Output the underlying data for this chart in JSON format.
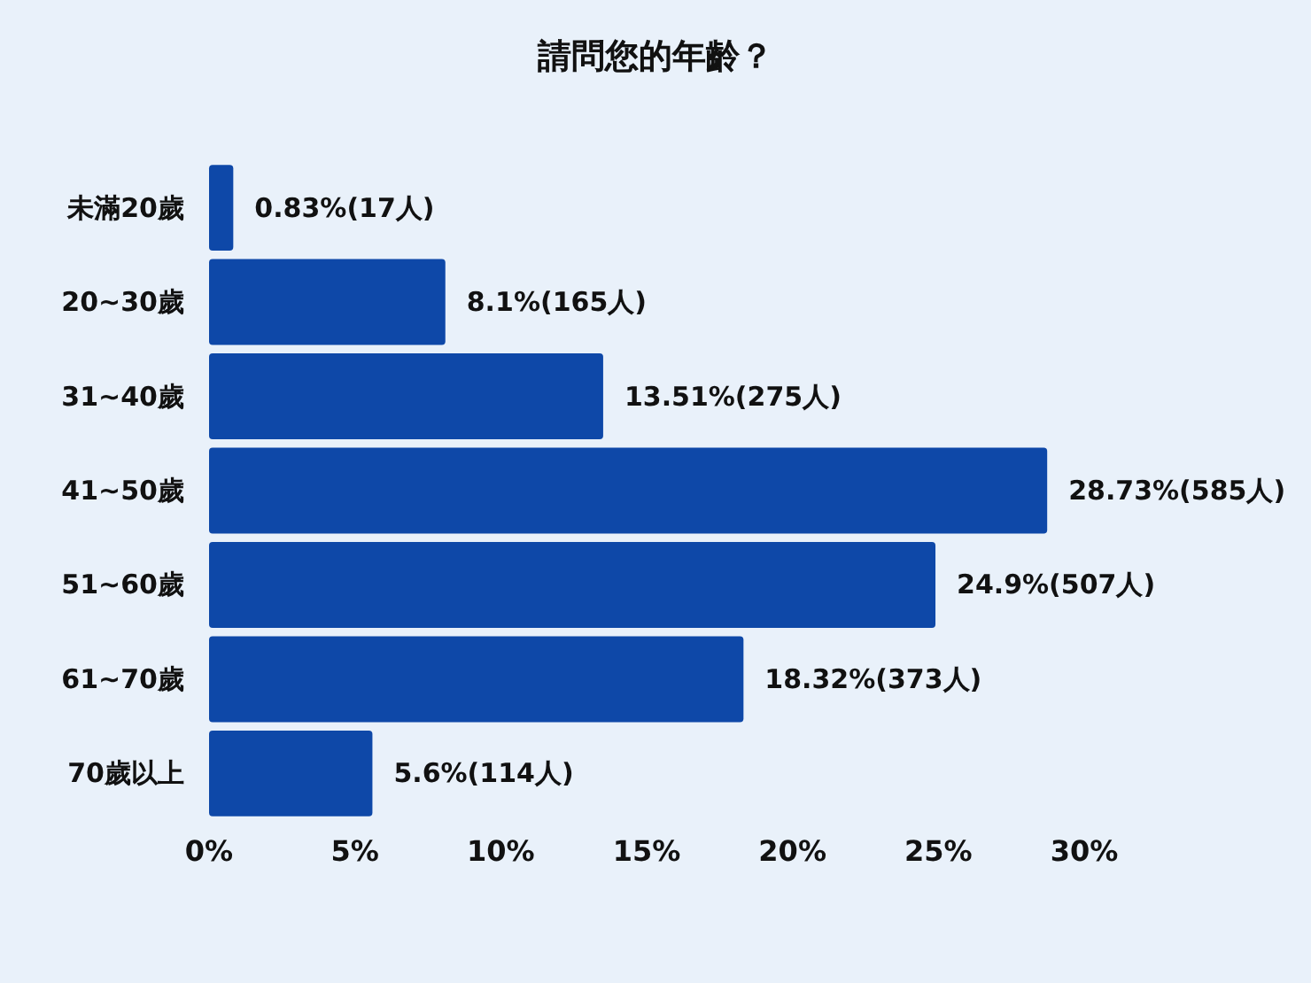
{
  "chart_data": {
    "type": "bar",
    "orientation": "horizontal",
    "title": "請問您的年齡？",
    "categories": [
      "未滿20歲",
      "20~30歲",
      "31~40歲",
      "41~50歲",
      "51~60歲",
      "61~70歲",
      "70歲以上"
    ],
    "values": [
      0.83,
      8.1,
      13.51,
      28.73,
      24.9,
      18.32,
      5.6
    ],
    "value_labels": [
      "0.83%(17人)",
      "8.1%(165人)",
      "13.51%(275人)",
      "28.73%(585人)",
      "24.9%(507人)",
      "18.32%(373人)",
      "5.6%(114人)"
    ],
    "color": "#0e48a8",
    "xlim": [
      0,
      30
    ],
    "xticks": [
      {
        "value": 0,
        "label": "0%"
      },
      {
        "value": 5,
        "label": "5%"
      },
      {
        "value": 10,
        "label": "10%"
      },
      {
        "value": 15,
        "label": "15%"
      },
      {
        "value": 20,
        "label": "20%"
      },
      {
        "value": 25,
        "label": "25%"
      },
      {
        "value": 30,
        "label": "30%"
      }
    ],
    "grid": false
  }
}
